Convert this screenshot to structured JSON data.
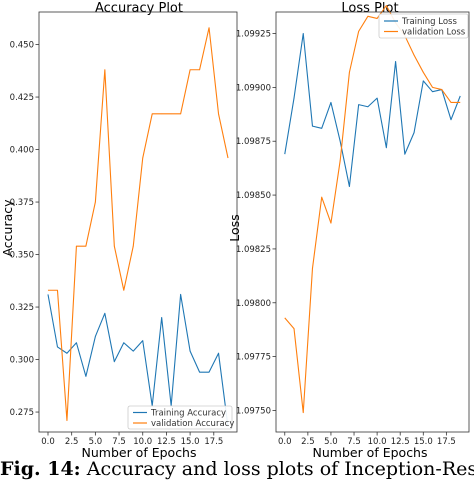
{
  "caption": {
    "label": "Fig. 14:",
    "text": "Accuracy and loss plots of Inception-Resnet-"
  },
  "chart_data": [
    {
      "type": "line",
      "title": "Accuracy Plot",
      "xlabel": "Number of Epochs",
      "ylabel": "Accuracy",
      "xlim": [
        -0.95,
        19.95
      ],
      "ylim": [
        0.2655,
        0.4655
      ],
      "xticks": [
        0.0,
        2.5,
        5.0,
        7.5,
        10.0,
        12.5,
        15.0,
        17.5
      ],
      "xtick_labels": [
        "0.0",
        "2.5",
        "5.0",
        "7.5",
        "10.0",
        "12.5",
        "15.0",
        "17.5"
      ],
      "yticks": [
        0.275,
        0.3,
        0.325,
        0.35,
        0.375,
        0.4,
        0.425,
        0.45
      ],
      "ytick_labels": [
        "0.275",
        "0.300",
        "0.325",
        "0.350",
        "0.375",
        "0.400",
        "0.425",
        "0.450"
      ],
      "grid": false,
      "legend_position": "lower-center",
      "x": [
        0,
        1,
        2,
        3,
        4,
        5,
        6,
        7,
        8,
        9,
        10,
        11,
        12,
        13,
        14,
        15,
        16,
        17,
        18,
        19
      ],
      "series": [
        {
          "name": "Training Accuracy",
          "color": "#1f77b4",
          "values": [
            0.331,
            0.306,
            0.303,
            0.308,
            0.292,
            0.311,
            0.322,
            0.299,
            0.308,
            0.304,
            0.309,
            0.278,
            0.32,
            0.278,
            0.331,
            0.304,
            0.294,
            0.294,
            0.303,
            0.268
          ]
        },
        {
          "name": "validation Accuracy",
          "color": "#ff7f0e",
          "values": [
            0.333,
            0.333,
            0.271,
            0.354,
            0.354,
            0.375,
            0.438,
            0.354,
            0.333,
            0.354,
            0.396,
            0.417,
            0.417,
            0.417,
            0.417,
            0.438,
            0.438,
            0.458,
            0.417,
            0.396
          ]
        }
      ]
    },
    {
      "type": "line",
      "title": "Loss Plot",
      "xlabel": "Number of Epochs",
      "ylabel": "Loss",
      "xlim": [
        -0.95,
        19.95
      ],
      "ylim": [
        1.0974,
        1.09935
      ],
      "xticks": [
        0.0,
        2.5,
        5.0,
        7.5,
        10.0,
        12.5,
        15.0,
        17.5
      ],
      "xtick_labels": [
        "0.0",
        "2.5",
        "5.0",
        "7.5",
        "10.0",
        "12.5",
        "15.0",
        "17.5"
      ],
      "yticks": [
        1.0975,
        1.09775,
        1.098,
        1.09825,
        1.0985,
        1.09875,
        1.099,
        1.09925
      ],
      "ytick_labels": [
        "1.09750",
        "1.09775",
        "1.09800",
        "1.09825",
        "1.09850",
        "1.09875",
        "1.09900",
        "1.09925"
      ],
      "grid": false,
      "legend_position": "top-right",
      "x": [
        0,
        1,
        2,
        3,
        4,
        5,
        6,
        7,
        8,
        9,
        10,
        11,
        12,
        13,
        14,
        15,
        16,
        17,
        18,
        19
      ],
      "series": [
        {
          "name": "Training Loss",
          "color": "#1f77b4",
          "values": [
            1.09869,
            1.09895,
            1.09925,
            1.09882,
            1.09881,
            1.09893,
            1.09875,
            1.09854,
            1.09892,
            1.09891,
            1.09895,
            1.09872,
            1.09912,
            1.09869,
            1.09879,
            1.09903,
            1.09898,
            1.09899,
            1.09885,
            1.09896
          ]
        },
        {
          "name": "validation Loss",
          "color": "#ff7f0e",
          "values": [
            1.09793,
            1.09788,
            1.09749,
            1.09816,
            1.09849,
            1.09837,
            1.09866,
            1.09907,
            1.09926,
            1.09933,
            1.09932,
            1.09938,
            1.0993,
            1.09924,
            1.09915,
            1.09907,
            1.099,
            1.09899,
            1.09893,
            1.09893
          ]
        }
      ]
    }
  ]
}
